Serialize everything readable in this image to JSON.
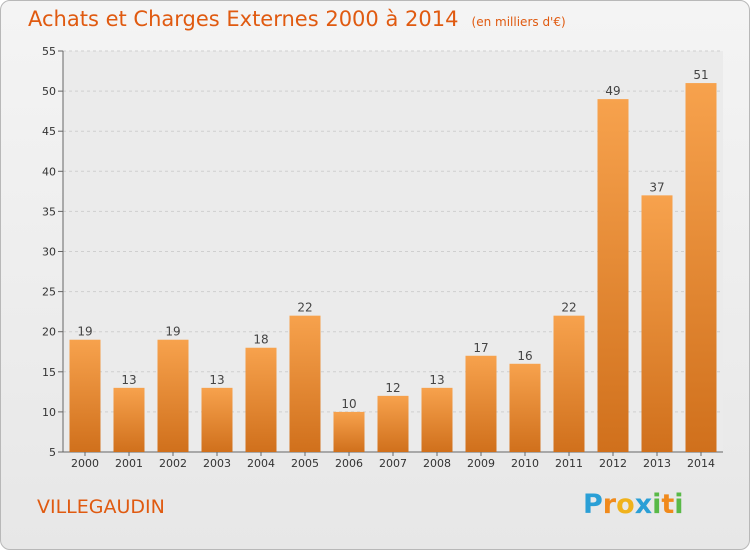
{
  "chart_data": {
    "type": "bar",
    "title": "Achats et Charges Externes 2000 à 2014",
    "unit_label": "(en milliers d'€)",
    "categories": [
      "2000",
      "2001",
      "2002",
      "2003",
      "2004",
      "2005",
      "2006",
      "2007",
      "2008",
      "2009",
      "2010",
      "2011",
      "2012",
      "2013",
      "2014"
    ],
    "values": [
      19,
      13,
      19,
      13,
      18,
      22,
      10,
      12,
      13,
      17,
      16,
      22,
      49,
      37,
      51
    ],
    "ylim": [
      5,
      55
    ],
    "yticks": [
      "5",
      "10",
      "15",
      "20",
      "25",
      "30",
      "35",
      "40",
      "45",
      "50",
      "55"
    ],
    "xlabel": "",
    "ylabel": "",
    "grid": true,
    "bar_color_top": "#f7a24d",
    "bar_color_bottom": "#d0701c"
  },
  "commune": "VILLEGAUDIN",
  "logo": {
    "letters": [
      "P",
      "r",
      "o",
      "x",
      "i",
      "t",
      "i"
    ],
    "colors": [
      "#2a9fd6",
      "#f08a1c",
      "#f0b21c",
      "#2a9fd6",
      "#59b947",
      "#f08a1c",
      "#59b947"
    ]
  },
  "colors": {
    "accent": "#e05a10"
  }
}
